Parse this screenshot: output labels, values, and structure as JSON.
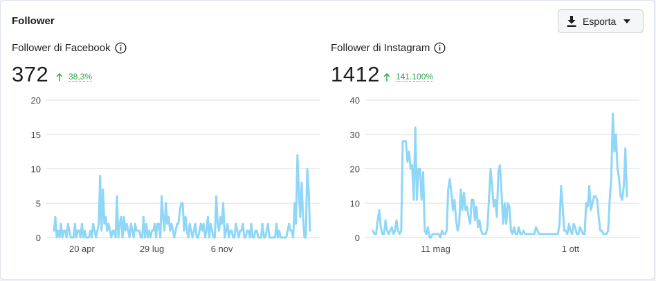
{
  "card": {
    "title": "Follower"
  },
  "export": {
    "label": "Esporta"
  },
  "icons": {
    "export": "download-icon",
    "dropdown": "caret-down-icon",
    "info": "info-icon",
    "growth": "arrow-up-icon"
  },
  "colors": {
    "line": "#8fd6f7",
    "growth": "#31a24c",
    "grid": "#dadde1"
  },
  "facebook": {
    "title": "Follower di Facebook",
    "value": "372",
    "growth": "38,3%"
  },
  "instagram": {
    "title": "Follower di Instagram",
    "value": "1412",
    "growth": "141.100%"
  },
  "chart_data": [
    {
      "type": "line",
      "title": "Follower di Facebook",
      "ylim": [
        0,
        20
      ],
      "yticks": [
        0,
        5,
        10,
        15,
        20
      ],
      "xtick_labels": [
        {
          "label": "20 apr",
          "index": 20
        },
        {
          "label": "29 lug",
          "index": 70
        },
        {
          "label": "6 nov",
          "index": 120
        }
      ],
      "grid": true,
      "series": [
        {
          "values": [
            1,
            3,
            0,
            1,
            0,
            2,
            0,
            1,
            1,
            0,
            2,
            1,
            0,
            0,
            0,
            2,
            0,
            1,
            1,
            0,
            2,
            0,
            1,
            0,
            0,
            0,
            1,
            0,
            2,
            1,
            0,
            1,
            2,
            9,
            1,
            7,
            2,
            3,
            1,
            2,
            1,
            0,
            1,
            1,
            0,
            6,
            0,
            2,
            3,
            0,
            3,
            1,
            2,
            1,
            0,
            2,
            1,
            0,
            2,
            1,
            1,
            1,
            0,
            0,
            3,
            0,
            2,
            0,
            1,
            0,
            1,
            1,
            2,
            0,
            2,
            2,
            0,
            6,
            3,
            1,
            5,
            2,
            3,
            1,
            2,
            1,
            0,
            1,
            2,
            2,
            4,
            5,
            5,
            1,
            3,
            1,
            0,
            2,
            1,
            0,
            1,
            2,
            0,
            0,
            1,
            2,
            1,
            2,
            0,
            1,
            3,
            0,
            2,
            1,
            0,
            0,
            6,
            2,
            1,
            3,
            2,
            5,
            0,
            1,
            2,
            0,
            1,
            1,
            0,
            0,
            2,
            1,
            0,
            1,
            1,
            2,
            0,
            0,
            1,
            1,
            0,
            2,
            0,
            0,
            1,
            1,
            0,
            0,
            0,
            2,
            0,
            0,
            1,
            2,
            0,
            0,
            0,
            0,
            0,
            2,
            0,
            1,
            0,
            0,
            0,
            0,
            0,
            1,
            2,
            1,
            1,
            0,
            5,
            2,
            12,
            7,
            3,
            8,
            3,
            0,
            0,
            10,
            7,
            1
          ]
        }
      ]
    },
    {
      "type": "line",
      "title": "Follower di Instagram",
      "ylim": [
        0,
        40
      ],
      "yticks": [
        0,
        10,
        20,
        30,
        40
      ],
      "xtick_labels": [
        {
          "label": "11 mag",
          "index": 40
        },
        {
          "label": "1 ott",
          "index": 126
        }
      ],
      "grid": true,
      "series": [
        {
          "values": [
            2,
            1,
            1,
            5,
            8,
            3,
            1,
            1,
            5,
            2,
            1,
            2,
            3,
            1,
            2,
            5,
            2,
            1,
            2,
            28,
            28,
            28,
            22,
            25,
            20,
            21,
            11,
            32,
            11,
            20,
            20,
            11,
            19,
            2,
            1,
            3,
            0,
            0,
            1,
            1,
            1,
            1,
            1,
            0,
            2,
            1,
            1,
            2,
            14,
            17,
            13,
            8,
            11,
            5,
            2,
            4,
            14,
            8,
            13,
            8,
            9,
            6,
            4,
            11,
            11,
            5,
            9,
            3,
            5,
            2,
            1,
            1,
            1,
            3,
            11,
            20,
            15,
            9,
            11,
            6,
            19,
            21,
            13,
            4,
            10,
            4,
            10,
            9,
            2,
            1,
            3,
            1,
            1,
            3,
            1,
            1,
            2,
            1,
            1,
            1,
            1,
            1,
            1,
            1,
            3,
            2,
            1,
            1,
            1,
            1,
            1,
            1,
            1,
            1,
            1,
            1,
            1,
            1,
            1,
            4,
            15,
            9,
            2,
            2,
            1,
            4,
            2,
            1,
            4,
            3,
            1,
            1,
            3,
            2,
            1,
            1,
            10,
            9,
            15,
            8,
            10,
            12,
            12,
            11,
            6,
            2,
            2,
            1,
            1,
            1,
            2,
            11,
            17,
            36,
            25,
            30,
            20,
            17,
            12,
            11,
            15,
            26,
            12
          ]
        }
      ]
    }
  ]
}
